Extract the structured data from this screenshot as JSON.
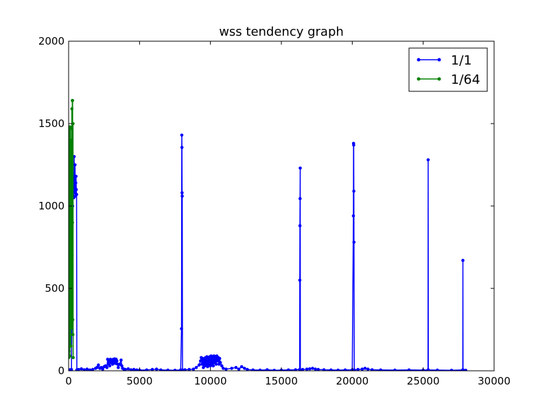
{
  "chart_data": {
    "type": "line",
    "title": "wss tendency graph",
    "xlabel": "",
    "ylabel": "",
    "xlim": [
      0,
      30000
    ],
    "ylim": [
      0,
      2000
    ],
    "xticks": [
      0,
      5000,
      10000,
      15000,
      20000,
      25000,
      30000
    ],
    "yticks": [
      0,
      500,
      1000,
      1500,
      2000
    ],
    "grid": false,
    "legend": {
      "placement": "top-right"
    },
    "series": [
      {
        "name": "1/1",
        "color": "#0000ff",
        "marker": "dot",
        "points": [
          [
            0,
            5
          ],
          [
            100,
            6
          ],
          [
            200,
            8
          ],
          [
            280,
            1000
          ],
          [
            300,
            1100
          ],
          [
            330,
            1180
          ],
          [
            360,
            1050
          ],
          [
            390,
            1300
          ],
          [
            420,
            1080
          ],
          [
            450,
            1250
          ],
          [
            480,
            1060
          ],
          [
            500,
            1140
          ],
          [
            520,
            1180
          ],
          [
            540,
            1100
          ],
          [
            560,
            1070
          ],
          [
            580,
            5
          ],
          [
            700,
            8
          ],
          [
            900,
            12
          ],
          [
            1100,
            6
          ],
          [
            1300,
            10
          ],
          [
            1500,
            5
          ],
          [
            1700,
            8
          ],
          [
            1900,
            15
          ],
          [
            2000,
            20
          ],
          [
            2100,
            35
          ],
          [
            2200,
            15
          ],
          [
            2300,
            20
          ],
          [
            2400,
            10
          ],
          [
            2500,
            25
          ],
          [
            2600,
            30
          ],
          [
            2700,
            20
          ],
          [
            2750,
            70
          ],
          [
            2800,
            40
          ],
          [
            2850,
            60
          ],
          [
            2900,
            30
          ],
          [
            2950,
            70
          ],
          [
            3000,
            50
          ],
          [
            3050,
            65
          ],
          [
            3100,
            40
          ],
          [
            3150,
            70
          ],
          [
            3200,
            55
          ],
          [
            3250,
            72
          ],
          [
            3300,
            45
          ],
          [
            3350,
            70
          ],
          [
            3400,
            60
          ],
          [
            3450,
            40
          ],
          [
            3500,
            20
          ],
          [
            3600,
            40
          ],
          [
            3700,
            65
          ],
          [
            3750,
            30
          ],
          [
            3800,
            15
          ],
          [
            3900,
            10
          ],
          [
            4000,
            8
          ],
          [
            4200,
            12
          ],
          [
            4400,
            6
          ],
          [
            4600,
            8
          ],
          [
            4800,
            5
          ],
          [
            5000,
            4
          ],
          [
            5500,
            5
          ],
          [
            5900,
            8
          ],
          [
            6200,
            10
          ],
          [
            6500,
            5
          ],
          [
            7000,
            4
          ],
          [
            7500,
            3
          ],
          [
            7900,
            5
          ],
          [
            7960,
            255
          ],
          [
            7980,
            1430
          ],
          [
            7990,
            1355
          ],
          [
            8000,
            1080
          ],
          [
            8010,
            1060
          ],
          [
            8030,
            5
          ],
          [
            8200,
            6
          ],
          [
            8500,
            8
          ],
          [
            8800,
            10
          ],
          [
            9000,
            20
          ],
          [
            9200,
            35
          ],
          [
            9300,
            60
          ],
          [
            9350,
            80
          ],
          [
            9400,
            40
          ],
          [
            9450,
            75
          ],
          [
            9500,
            20
          ],
          [
            9550,
            70
          ],
          [
            9600,
            30
          ],
          [
            9650,
            80
          ],
          [
            9700,
            40
          ],
          [
            9750,
            85
          ],
          [
            9800,
            25
          ],
          [
            9850,
            80
          ],
          [
            9900,
            35
          ],
          [
            9950,
            85
          ],
          [
            10000,
            30
          ],
          [
            10050,
            90
          ],
          [
            10100,
            40
          ],
          [
            10150,
            85
          ],
          [
            10200,
            30
          ],
          [
            10250,
            90
          ],
          [
            10300,
            50
          ],
          [
            10350,
            85
          ],
          [
            10400,
            40
          ],
          [
            10450,
            90
          ],
          [
            10500,
            60
          ],
          [
            10550,
            80
          ],
          [
            10600,
            40
          ],
          [
            10650,
            75
          ],
          [
            10700,
            50
          ],
          [
            10800,
            30
          ],
          [
            10900,
            15
          ],
          [
            11100,
            10
          ],
          [
            11500,
            15
          ],
          [
            11800,
            20
          ],
          [
            12000,
            10
          ],
          [
            12200,
            25
          ],
          [
            12400,
            15
          ],
          [
            12600,
            8
          ],
          [
            13000,
            5
          ],
          [
            13500,
            4
          ],
          [
            14000,
            6
          ],
          [
            14500,
            3
          ],
          [
            15000,
            4
          ],
          [
            15500,
            5
          ],
          [
            16000,
            6
          ],
          [
            16290,
            8
          ],
          [
            16300,
            550
          ],
          [
            16310,
            880
          ],
          [
            16320,
            1045
          ],
          [
            16330,
            1230
          ],
          [
            16340,
            5
          ],
          [
            16500,
            8
          ],
          [
            16800,
            10
          ],
          [
            17000,
            12
          ],
          [
            17200,
            15
          ],
          [
            17400,
            10
          ],
          [
            17600,
            8
          ],
          [
            18000,
            6
          ],
          [
            18500,
            5
          ],
          [
            19000,
            4
          ],
          [
            19500,
            5
          ],
          [
            20000,
            6
          ],
          [
            20080,
            940
          ],
          [
            20090,
            1380
          ],
          [
            20100,
            1370
          ],
          [
            20110,
            1090
          ],
          [
            20120,
            780
          ],
          [
            20140,
            5
          ],
          [
            20400,
            8
          ],
          [
            20700,
            10
          ],
          [
            20900,
            15
          ],
          [
            21100,
            10
          ],
          [
            21400,
            6
          ],
          [
            22000,
            5
          ],
          [
            23000,
            4
          ],
          [
            24000,
            5
          ],
          [
            25000,
            4
          ],
          [
            25340,
            5
          ],
          [
            25350,
            1280
          ],
          [
            25360,
            5
          ],
          [
            26000,
            4
          ],
          [
            27000,
            3
          ],
          [
            27790,
            5
          ],
          [
            27800,
            670
          ],
          [
            27810,
            5
          ],
          [
            28000,
            3
          ]
        ]
      },
      {
        "name": "1/64",
        "color": "#008000",
        "marker": "dot",
        "points": [
          [
            10,
            80
          ],
          [
            20,
            1390
          ],
          [
            35,
            120
          ],
          [
            50,
            1480
          ],
          [
            65,
            210
          ],
          [
            80,
            1190
          ],
          [
            95,
            90
          ],
          [
            110,
            1480
          ],
          [
            125,
            330
          ],
          [
            140,
            1290
          ],
          [
            155,
            150
          ],
          [
            170,
            1400
          ],
          [
            185,
            460
          ],
          [
            200,
            1470
          ],
          [
            215,
            260
          ],
          [
            230,
            1590
          ],
          [
            245,
            700
          ],
          [
            260,
            1640
          ],
          [
            270,
            900
          ],
          [
            280,
            1640
          ],
          [
            290,
            310
          ],
          [
            300,
            220
          ],
          [
            310,
            1500
          ],
          [
            320,
            80
          ]
        ]
      }
    ]
  }
}
